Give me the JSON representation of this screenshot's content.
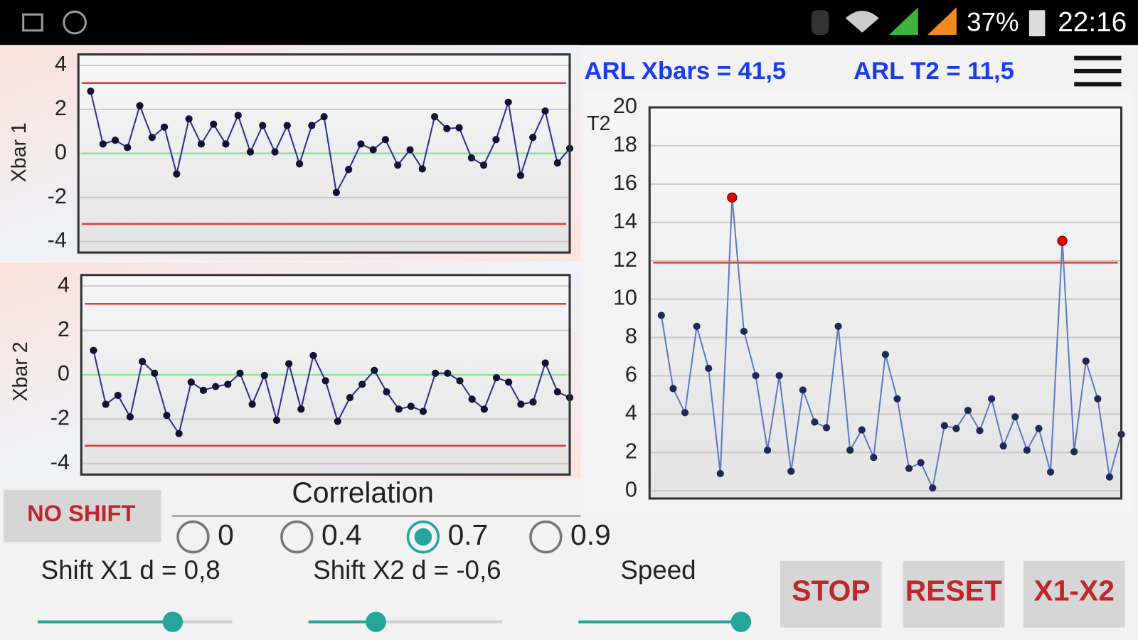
{
  "status_bar": {
    "battery": "37%",
    "time": "22:16"
  },
  "arl": {
    "xbars": "ARL Xbars = 41,5",
    "t2": "ARL T2 = 11,5"
  },
  "chart_data": [
    {
      "type": "line",
      "ylabel": "Xbar 1",
      "xlim": [
        0,
        40
      ],
      "ylim": [
        -4.5,
        4.5
      ],
      "yticks": [
        -4,
        -2,
        0,
        2,
        4
      ],
      "grid": true,
      "control_limits": [
        -3.2,
        3.2
      ],
      "center_line": 0,
      "limit_color": "#e53935",
      "center_color": "#8be39a",
      "x": [
        1,
        2,
        3,
        4,
        5,
        6,
        7,
        8,
        9,
        10,
        11,
        12,
        13,
        14,
        15,
        16,
        17,
        18,
        19,
        20,
        21,
        22,
        23,
        24,
        25,
        26,
        27,
        28,
        29,
        30,
        31,
        32,
        33,
        34,
        35,
        36,
        37,
        38,
        39,
        40
      ],
      "series": [
        {
          "color": "#2b2f8f",
          "point_color": "#111133",
          "values": [
            2.83,
            0.43,
            0.6,
            0.27,
            2.17,
            0.73,
            1.2,
            -0.93,
            1.57,
            0.43,
            1.33,
            0.43,
            1.73,
            0.07,
            1.27,
            0.07,
            1.27,
            -0.47,
            1.27,
            1.67,
            -1.77,
            -0.73,
            0.43,
            0.17,
            0.63,
            -0.53,
            0.17,
            -0.7,
            1.67,
            1.13,
            1.17,
            -0.2,
            -0.53,
            0.63,
            2.33,
            -1.0,
            0.73,
            1.93,
            -0.43,
            0.23
          ]
        }
      ]
    },
    {
      "type": "line",
      "ylabel": "Xbar 2",
      "xlim": [
        0,
        40
      ],
      "ylim": [
        -4.5,
        4.5
      ],
      "yticks": [
        -4,
        -2,
        0,
        2,
        4
      ],
      "grid": true,
      "control_limits": [
        -3.2,
        3.2
      ],
      "center_line": 0,
      "limit_color": "#e53935",
      "center_color": "#8be39a",
      "x": [
        1,
        2,
        3,
        4,
        5,
        6,
        7,
        8,
        9,
        10,
        11,
        12,
        13,
        14,
        15,
        16,
        17,
        18,
        19,
        20,
        21,
        22,
        23,
        24,
        25,
        26,
        27,
        28,
        29,
        30,
        31,
        32,
        33,
        34,
        35,
        36,
        37,
        38,
        39,
        40
      ],
      "series": [
        {
          "color": "#2b2f8f",
          "point_color": "#111133",
          "values": [
            1.1,
            -1.33,
            -0.93,
            -1.9,
            0.6,
            0.07,
            -1.83,
            -2.65,
            -0.33,
            -0.7,
            -0.53,
            -0.43,
            0.07,
            -1.33,
            -0.03,
            -2.05,
            0.5,
            -1.55,
            0.87,
            -0.27,
            -2.1,
            -1.03,
            -0.43,
            0.2,
            -0.77,
            -1.55,
            -1.42,
            -1.65,
            0.07,
            0.07,
            -0.27,
            -1.1,
            -1.55,
            -0.13,
            -0.33,
            -1.33,
            -1.23,
            0.53,
            -0.77,
            -1.03
          ]
        }
      ]
    },
    {
      "type": "line",
      "ylabel": "T2",
      "xlim": [
        0,
        40
      ],
      "ylim": [
        -0.4,
        20
      ],
      "yticks": [
        0,
        2,
        4,
        6,
        8,
        10,
        12,
        14,
        16,
        18,
        20
      ],
      "grid": true,
      "control_limits": [
        11.9
      ],
      "limit_color": "#e53935",
      "alarm_color": "#e00000",
      "x": [
        1,
        2,
        3,
        4,
        5,
        6,
        7,
        8,
        9,
        10,
        11,
        12,
        13,
        14,
        15,
        16,
        17,
        18,
        19,
        20,
        21,
        22,
        23,
        24,
        25,
        26,
        27,
        28,
        29,
        30,
        31,
        32,
        33,
        34,
        35,
        36,
        37,
        38,
        39,
        40
      ],
      "series": [
        {
          "color": "#5b7bc4",
          "point_color": "#1c2a55",
          "values": [
            9.15,
            5.33,
            4.08,
            8.58,
            6.39,
            0.9,
            15.3,
            8.32,
            6.01,
            2.12,
            6.01,
            1.02,
            5.26,
            3.59,
            3.29,
            8.58,
            2.12,
            3.18,
            1.74,
            7.11,
            4.8,
            1.17,
            1.47,
            0.15,
            3.4,
            3.25,
            4.2,
            3.14,
            4.8,
            2.34,
            3.86,
            2.12,
            3.25,
            0.98,
            13.04,
            2.04,
            6.77,
            4.8,
            0.72,
            2.95
          ]
        }
      ]
    }
  ],
  "controls": {
    "no_shift": "NO SHIFT",
    "correlation": {
      "title": "Correlation",
      "options": [
        "0",
        "0.4",
        "0.7",
        "0.9"
      ],
      "selected": 2
    },
    "sliders": [
      "Shift X1 d = 0,8",
      "Shift X2 d = -0,6",
      "Speed"
    ],
    "buttons": [
      "STOP",
      "RESET",
      "X1-X2"
    ]
  }
}
